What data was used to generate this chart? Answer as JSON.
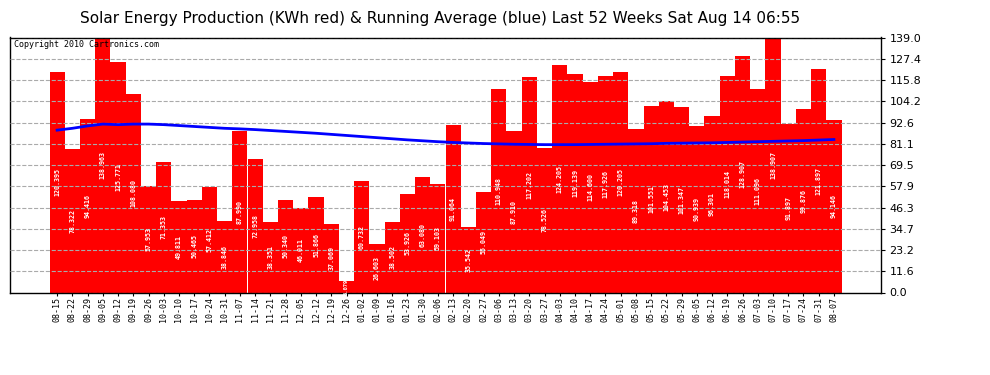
{
  "title": "Solar Energy Production (KWh red) & Running Average (blue) Last 52 Weeks Sat Aug 14 06:55",
  "copyright": "Copyright 2010 Cartronics.com",
  "bar_color": "#ff0000",
  "line_color": "#0000ff",
  "bg_color": "#ffffff",
  "grid_color": "#aaaaaa",
  "ylim": [
    0,
    139.0
  ],
  "yticks": [
    0.0,
    11.6,
    23.2,
    34.7,
    46.3,
    57.9,
    69.5,
    81.1,
    92.6,
    104.2,
    115.8,
    127.4,
    139.0
  ],
  "categories": [
    "08-15",
    "08-22",
    "08-29",
    "09-05",
    "09-12",
    "09-19",
    "09-26",
    "10-03",
    "10-10",
    "10-17",
    "10-24",
    "10-31",
    "11-07",
    "11-14",
    "11-21",
    "11-28",
    "12-05",
    "12-12",
    "12-19",
    "12-26",
    "01-02",
    "01-09",
    "01-16",
    "01-23",
    "01-30",
    "02-06",
    "02-13",
    "02-20",
    "02-27",
    "03-06",
    "03-13",
    "03-20",
    "03-27",
    "04-03",
    "04-10",
    "04-17",
    "04-24",
    "05-01",
    "05-08",
    "05-15",
    "05-22",
    "05-29",
    "06-05",
    "06-12",
    "06-19",
    "06-26",
    "07-03",
    "07-10",
    "07-17",
    "07-24",
    "07-31",
    "08-07"
  ],
  "values": [
    120.395,
    78.322,
    94.416,
    138.963,
    125.771,
    108.08,
    57.953,
    71.353,
    49.811,
    50.465,
    57.412,
    38.846,
    87.99,
    72.958,
    38.351,
    50.34,
    46.011,
    51.866,
    37.069,
    6.079,
    60.732,
    26.603,
    38.502,
    53.926,
    63.08,
    59.103,
    91.064,
    35.542,
    55.049,
    110.948,
    87.91,
    117.202,
    78.526,
    124.205,
    119.139,
    114.6,
    117.926,
    120.205,
    89.318,
    101.551,
    104.453,
    101.347,
    90.939,
    96.301,
    118.014,
    128.907,
    111.096,
    138.907,
    91.897,
    99.876,
    121.897,
    94.146
  ],
  "running_avg": [
    88.5,
    89.5,
    90.8,
    91.8,
    91.5,
    91.8,
    91.8,
    91.5,
    91.0,
    90.5,
    90.0,
    89.5,
    89.2,
    88.8,
    88.3,
    87.8,
    87.3,
    86.8,
    86.2,
    85.6,
    85.0,
    84.4,
    83.8,
    83.2,
    82.7,
    82.2,
    81.8,
    81.5,
    81.2,
    81.0,
    80.8,
    80.7,
    80.6,
    80.6,
    80.6,
    80.7,
    80.8,
    80.9,
    81.0,
    81.1,
    81.3,
    81.4,
    81.5,
    81.6,
    81.8,
    82.0,
    82.2,
    82.4,
    82.6,
    82.8,
    83.1,
    83.4
  ],
  "title_fontsize": 11,
  "label_fontsize": 7,
  "tick_fontsize": 8
}
